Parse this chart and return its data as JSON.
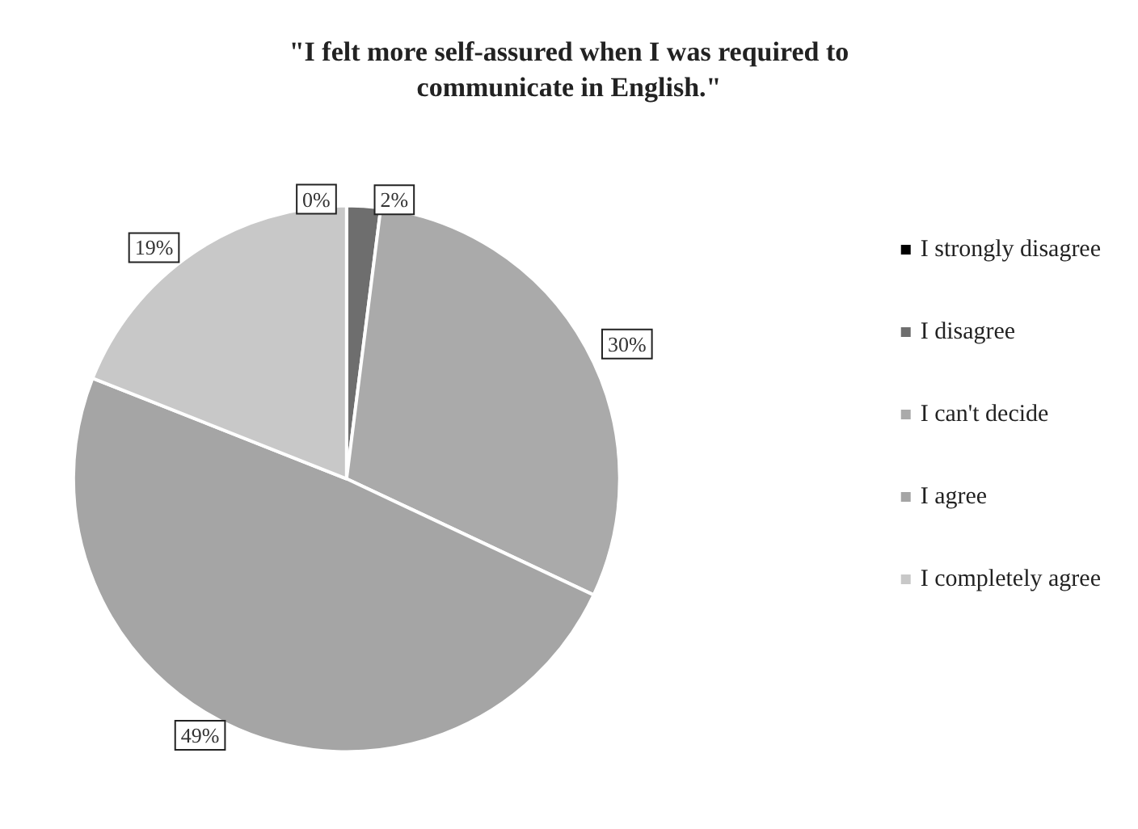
{
  "chart_data": {
    "type": "pie",
    "title": "\"I felt more self-assured when I was required to\ncommunicate in English.\"",
    "categories": [
      "I strongly disagree",
      "I disagree",
      "I can't decide",
      "I agree",
      "I completely agree"
    ],
    "values": [
      0,
      2,
      30,
      49,
      19
    ],
    "colors": [
      "#000000",
      "#6e6e6e",
      "#aaaaaa",
      "#a5a5a5",
      "#c8c8c8"
    ],
    "value_labels": [
      "0%",
      "2%",
      "30%",
      "49%",
      "19%"
    ],
    "legend": "right"
  }
}
